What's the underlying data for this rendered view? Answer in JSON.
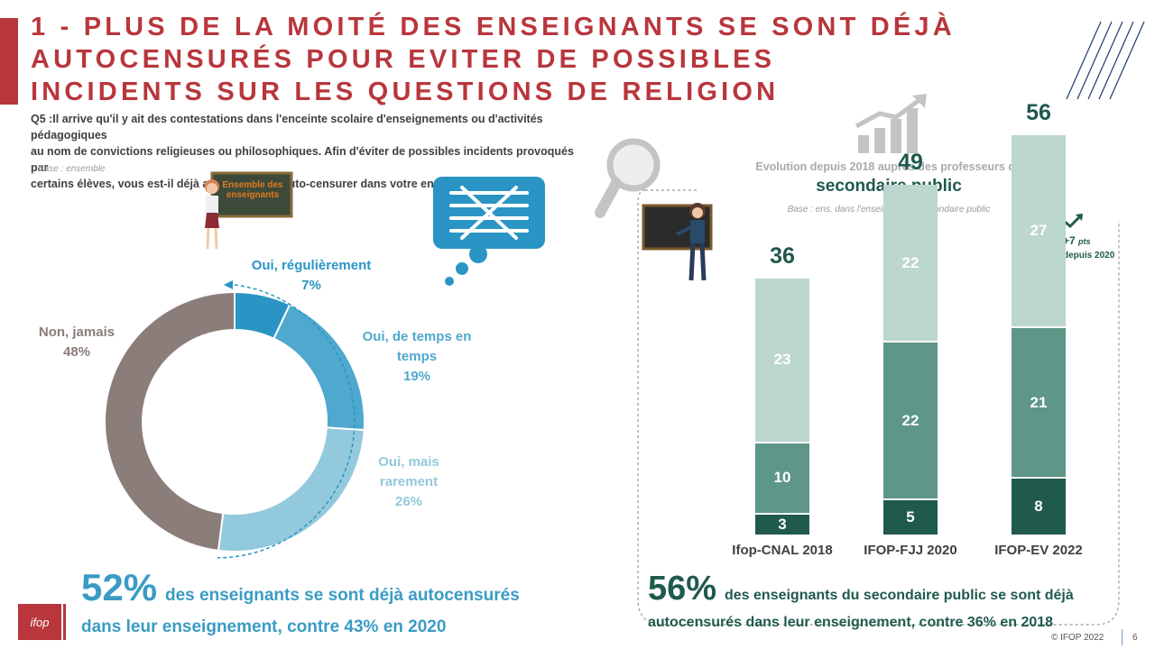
{
  "title": {
    "lines": [
      "1 - PLUS DE LA MOITÉ DES ENSEIGNANTS SE SONT DÉJÀ",
      "AUTOCENSURÉS POUR EVITER DE POSSIBLES",
      "INCIDENTS  SUR LES QUESTIONS DE RELIGION"
    ]
  },
  "question": {
    "line1": "Q5 :Il arrive qu'il y ait des contestations dans l'enceinte scolaire d'enseignements ou d'activités pédagogiques",
    "line2": "au nom de convictions religieuses ou philosophiques.  Afin d'éviter de possibles incidents provoqués par",
    "line3": "certains élèves, vous est-il déjà arrivé de vous auto-censurer dans votre enseignement ?",
    "base": "Base : ensemble"
  },
  "board_left_label": {
    "line1": "Ensemble des",
    "line2": "enseignants"
  },
  "colors": {
    "title": "#b8363c",
    "donut": [
      "#2a95c4",
      "#4fa8cd",
      "#93c9dc",
      "#8b7d79"
    ],
    "bars": [
      "#1f5a4d",
      "#5e9688",
      "#bcd6d0"
    ]
  },
  "chart_data": [
    {
      "type": "pie",
      "variant": "donut",
      "slices": [
        {
          "label_line1": "Oui, régulièrement",
          "label_line2": "",
          "value": 7,
          "display": "7%"
        },
        {
          "label_line1": "Oui, de temps en",
          "label_line2": "temps",
          "value": 19,
          "display": "19%"
        },
        {
          "label_line1": "Oui, mais",
          "label_line2": "rarement",
          "value": 26,
          "display": "26%"
        },
        {
          "label_line1": "Non, jamais",
          "label_line2": "",
          "value": 48,
          "display": "48%"
        }
      ]
    },
    {
      "type": "bar",
      "stacked": true,
      "categories": [
        "Ifop-CNAL 2018",
        "IFOP-FJJ 2020",
        "IFOP-EV 2022"
      ],
      "series": [
        {
          "values": [
            3,
            5,
            8
          ]
        },
        {
          "values": [
            10,
            22,
            21
          ]
        },
        {
          "values": [
            23,
            22,
            27
          ]
        }
      ],
      "totals": [
        36,
        49,
        56
      ],
      "ylim": [
        0,
        70
      ]
    }
  ],
  "right": {
    "subtitle": "Evolution depuis 2018 auprès des professeurs  du",
    "title": "secondaire public",
    "base": "Base : ens. dans l'enseignement secondaire public",
    "gain_main": "+7",
    "gain_unit": "pts",
    "gain_since": "depuis 2020"
  },
  "conclusion_left": {
    "big": "52%",
    "text1": "des enseignants se sont déjà autocensurés",
    "text2": "dans leur enseignement, contre 43% en 2020"
  },
  "conclusion_right": {
    "big": "56%",
    "text1": "des enseignants du secondaire public se sont déjà",
    "text2": "autocensurés dans leur enseignement, contre 36% en 2018"
  },
  "logo": "ifop",
  "footer": {
    "copyright": "© IFOP 2022",
    "page": "6"
  }
}
